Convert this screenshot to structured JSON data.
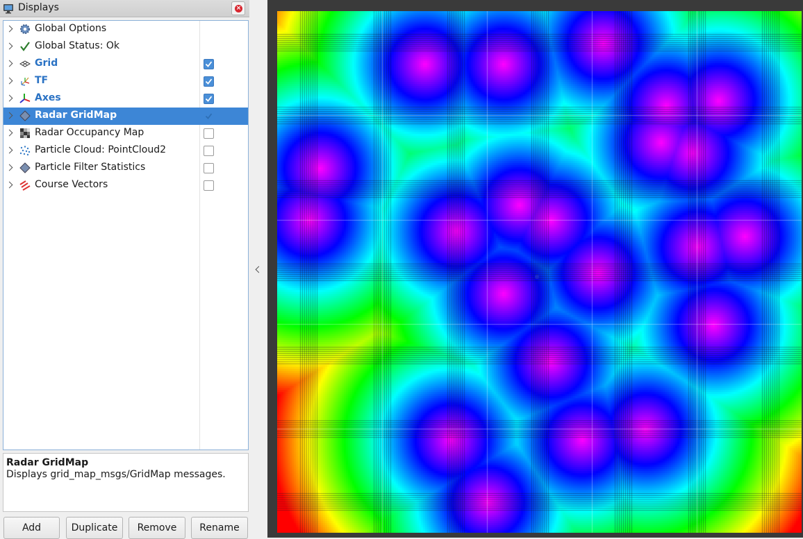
{
  "panel": {
    "title": "Displays",
    "items": [
      {
        "label": "Global Options",
        "icon": "gear-icon",
        "style": "normal",
        "checkbox": null
      },
      {
        "label": "Global Status: Ok",
        "icon": "checkmark-icon",
        "style": "normal",
        "checkbox": null
      },
      {
        "label": "Grid",
        "icon": "grid-icon",
        "style": "blue",
        "checkbox": true
      },
      {
        "label": "TF",
        "icon": "tf-icon",
        "style": "blue",
        "checkbox": true
      },
      {
        "label": "Axes",
        "icon": "axes-icon",
        "style": "blue",
        "checkbox": true
      },
      {
        "label": "Radar GridMap",
        "icon": "diamond-icon",
        "style": "selected",
        "checkbox": true
      },
      {
        "label": "Radar Occupancy Map",
        "icon": "occupancy-map-icon",
        "style": "normal",
        "checkbox": false
      },
      {
        "label": "Particle Cloud: PointCloud2",
        "icon": "point-cloud-icon",
        "style": "normal",
        "checkbox": false
      },
      {
        "label": "Particle Filter Statistics",
        "icon": "diamond-icon",
        "style": "normal",
        "checkbox": false
      },
      {
        "label": "Course Vectors",
        "icon": "course-vectors-icon",
        "style": "normal",
        "checkbox": false
      }
    ],
    "description": {
      "title": "Radar GridMap",
      "text": "Displays grid_map_msgs/GridMap messages."
    },
    "buttons": {
      "add": "Add",
      "duplicate": "Duplicate",
      "remove": "Remove",
      "rename": "Rename"
    }
  },
  "colors": {
    "selection": "#3d86d6",
    "enabled_label": "#2a72c4",
    "viewport_background": "#3a3a3a"
  }
}
